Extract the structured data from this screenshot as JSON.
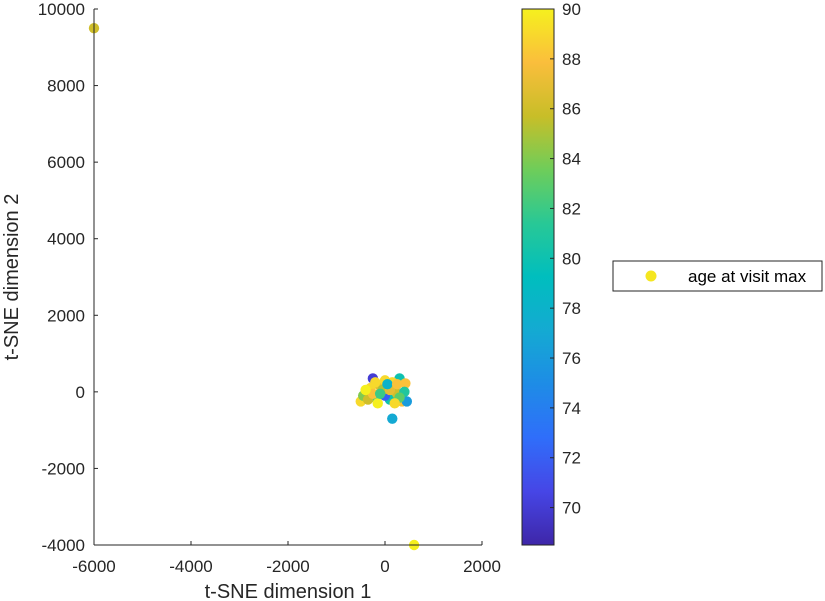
{
  "chart_data": {
    "type": "scatter",
    "xlabel": "t-SNE dimension 1",
    "ylabel": "t-SNE dimension 2",
    "xlim": [
      -6000,
      2000
    ],
    "ylim": [
      -4000,
      10000
    ],
    "xticks": [
      -6000,
      -4000,
      -2000,
      0,
      2000
    ],
    "yticks": [
      -4000,
      -2000,
      0,
      2000,
      4000,
      6000,
      8000,
      10000
    ],
    "colorbar": {
      "min": 68.5,
      "max": 90,
      "ticks": [
        70,
        72,
        74,
        76,
        78,
        80,
        82,
        84,
        86,
        88,
        90
      ],
      "colormap": "parula"
    },
    "legend": {
      "entries": [
        "age at visit max"
      ],
      "marker_color": "#f5e620",
      "position": "outside-right"
    },
    "grid": false,
    "series": [
      {
        "name": "age at visit max",
        "points": [
          {
            "x": -6000,
            "y": 9500,
            "c": 86
          },
          {
            "x": 600,
            "y": -4000,
            "c": 90
          },
          {
            "x": 150,
            "y": -700,
            "c": 77
          },
          {
            "x": -250,
            "y": 350,
            "c": 70
          },
          {
            "x": 300,
            "y": 350,
            "c": 80
          },
          {
            "x": 420,
            "y": 220,
            "c": 88
          },
          {
            "x": -500,
            "y": -250,
            "c": 89
          },
          {
            "x": -450,
            "y": -100,
            "c": 84
          },
          {
            "x": -300,
            "y": 100,
            "c": 89
          },
          {
            "x": -200,
            "y": -150,
            "c": 82
          },
          {
            "x": -100,
            "y": 150,
            "c": 87
          },
          {
            "x": 0,
            "y": 300,
            "c": 89
          },
          {
            "x": 50,
            "y": 0,
            "c": 86
          },
          {
            "x": 100,
            "y": -200,
            "c": 80
          },
          {
            "x": 200,
            "y": 100,
            "c": 79
          },
          {
            "x": 250,
            "y": -50,
            "c": 86
          },
          {
            "x": 350,
            "y": -250,
            "c": 88
          },
          {
            "x": 450,
            "y": -250,
            "c": 76
          },
          {
            "x": 400,
            "y": 0,
            "c": 81
          },
          {
            "x": -150,
            "y": -300,
            "c": 90
          },
          {
            "x": 0,
            "y": -100,
            "c": 72
          },
          {
            "x": -50,
            "y": 50,
            "c": 85
          },
          {
            "x": 150,
            "y": 250,
            "c": 89
          },
          {
            "x": -350,
            "y": -200,
            "c": 86
          },
          {
            "x": 300,
            "y": -150,
            "c": 83
          },
          {
            "x": -250,
            "y": -50,
            "c": 88
          },
          {
            "x": 100,
            "y": 50,
            "c": 87
          },
          {
            "x": -100,
            "y": -50,
            "c": 82
          },
          {
            "x": 200,
            "y": -300,
            "c": 89
          },
          {
            "x": -400,
            "y": 50,
            "c": 90
          },
          {
            "x": 50,
            "y": 200,
            "c": 78
          },
          {
            "x": 250,
            "y": 200,
            "c": 88
          },
          {
            "x": -200,
            "y": 250,
            "c": 89
          }
        ]
      }
    ]
  }
}
